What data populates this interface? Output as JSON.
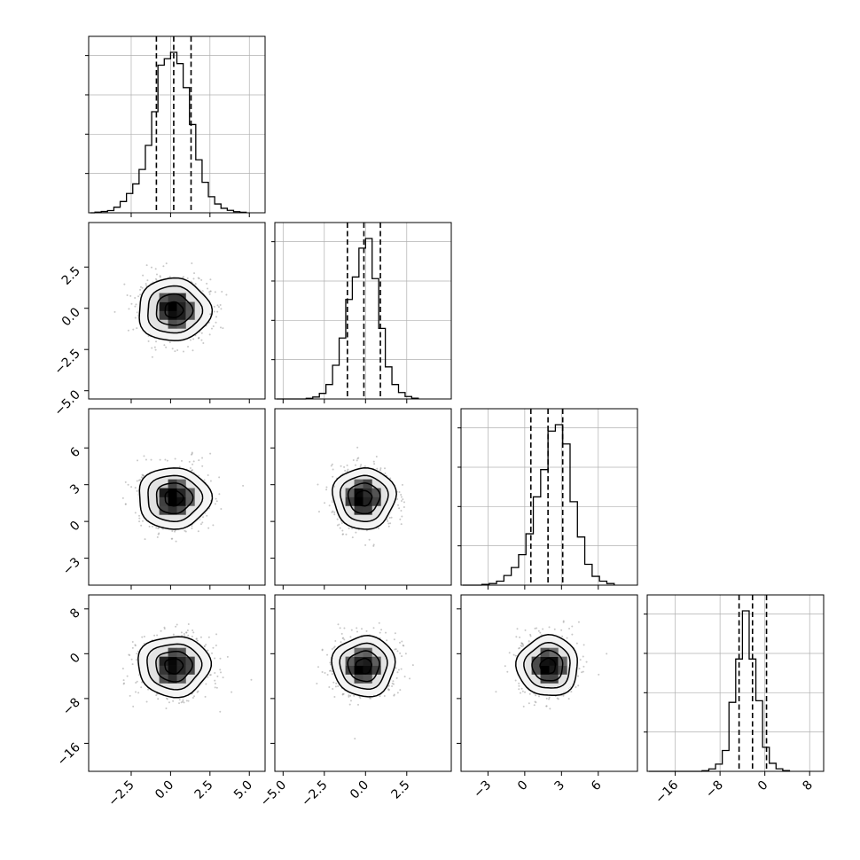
{
  "chart_data": {
    "type": "corner",
    "dimensions": 4,
    "parameters": [
      {
        "index": 0,
        "distribution": {
          "center": 0.2,
          "sigma": 1.15
        },
        "quantiles": {
          "q16": -0.9,
          "q50": 0.2,
          "q84": 1.3
        },
        "range": [
          -5.2,
          6.0
        ],
        "ticks": [
          -2.5,
          0.0,
          2.5,
          5.0
        ],
        "tick_labels": [
          "−2.5",
          "0.0",
          "2.5",
          "5.0"
        ],
        "histogram": {
          "bin_start": -4.8,
          "bin_width": 0.4,
          "counts": [
            0.004,
            0.008,
            0.014,
            0.035,
            0.07,
            0.12,
            0.18,
            0.27,
            0.42,
            0.63,
            0.92,
            0.96,
            1.0,
            0.93,
            0.78,
            0.55,
            0.33,
            0.19,
            0.1,
            0.055,
            0.028,
            0.015,
            0.007,
            0.003
          ]
        }
      },
      {
        "index": 1,
        "distribution": {
          "center": -0.1,
          "sigma": 0.95
        },
        "quantiles": {
          "q16": -1.1,
          "q50": -0.1,
          "q84": 0.9
        },
        "range": [
          -5.5,
          5.2
        ],
        "ticks": [
          -5.0,
          -2.5,
          0.0,
          2.5
        ],
        "tick_labels": [
          "−5.0",
          "−2.5",
          "0.0",
          "2.5"
        ],
        "histogram": {
          "bin_start": -3.6,
          "bin_width": 0.4,
          "counts": [
            0.004,
            0.012,
            0.035,
            0.09,
            0.21,
            0.38,
            0.62,
            0.76,
            0.94,
            1.0,
            0.75,
            0.44,
            0.2,
            0.09,
            0.04,
            0.015,
            0.005
          ]
        }
      },
      {
        "index": 2,
        "distribution": {
          "center": 1.9,
          "sigma": 1.25
        },
        "quantiles": {
          "q16": 0.5,
          "q50": 1.9,
          "q84": 3.1
        },
        "range": [
          -5.2,
          9.2
        ],
        "ticks": [
          -3,
          0,
          3,
          6
        ],
        "tick_labels": [
          "−3",
          "0",
          "3",
          "6"
        ],
        "histogram": {
          "bin_start": -3.5,
          "bin_width": 0.6,
          "counts": [
            0.005,
            0.01,
            0.025,
            0.06,
            0.11,
            0.19,
            0.32,
            0.55,
            0.72,
            0.96,
            1.0,
            0.88,
            0.52,
            0.3,
            0.13,
            0.055,
            0.025,
            0.01
          ]
        }
      },
      {
        "index": 3,
        "distribution": {
          "center": -2.2,
          "sigma": 2.7
        },
        "quantiles": {
          "q16": -4.6,
          "q50": -2.2,
          "q84": 0.3
        },
        "range": [
          -21.0,
          10.5
        ],
        "ticks": [
          -16,
          -8,
          0,
          8
        ],
        "tick_labels": [
          "−16",
          "−8",
          "0",
          "8"
        ],
        "histogram": {
          "bin_start": -11.2,
          "bin_width": 1.2,
          "counts": [
            0.004,
            0.015,
            0.045,
            0.13,
            0.43,
            0.7,
            1.0,
            0.7,
            0.44,
            0.15,
            0.05,
            0.016,
            0.005
          ]
        }
      }
    ],
    "contour_levels": [
      "0.5-sigma",
      "1-sigma",
      "1.5-sigma",
      "2-sigma"
    ],
    "quantile_lines": [
      "16%",
      "50%",
      "84%"
    ],
    "grid": true,
    "colors": {
      "lines": "#000000",
      "scatter": "#9a9a9a",
      "density_dark": "#000000",
      "density_light": "#ffffff",
      "grid": "#b0b0b0"
    }
  }
}
